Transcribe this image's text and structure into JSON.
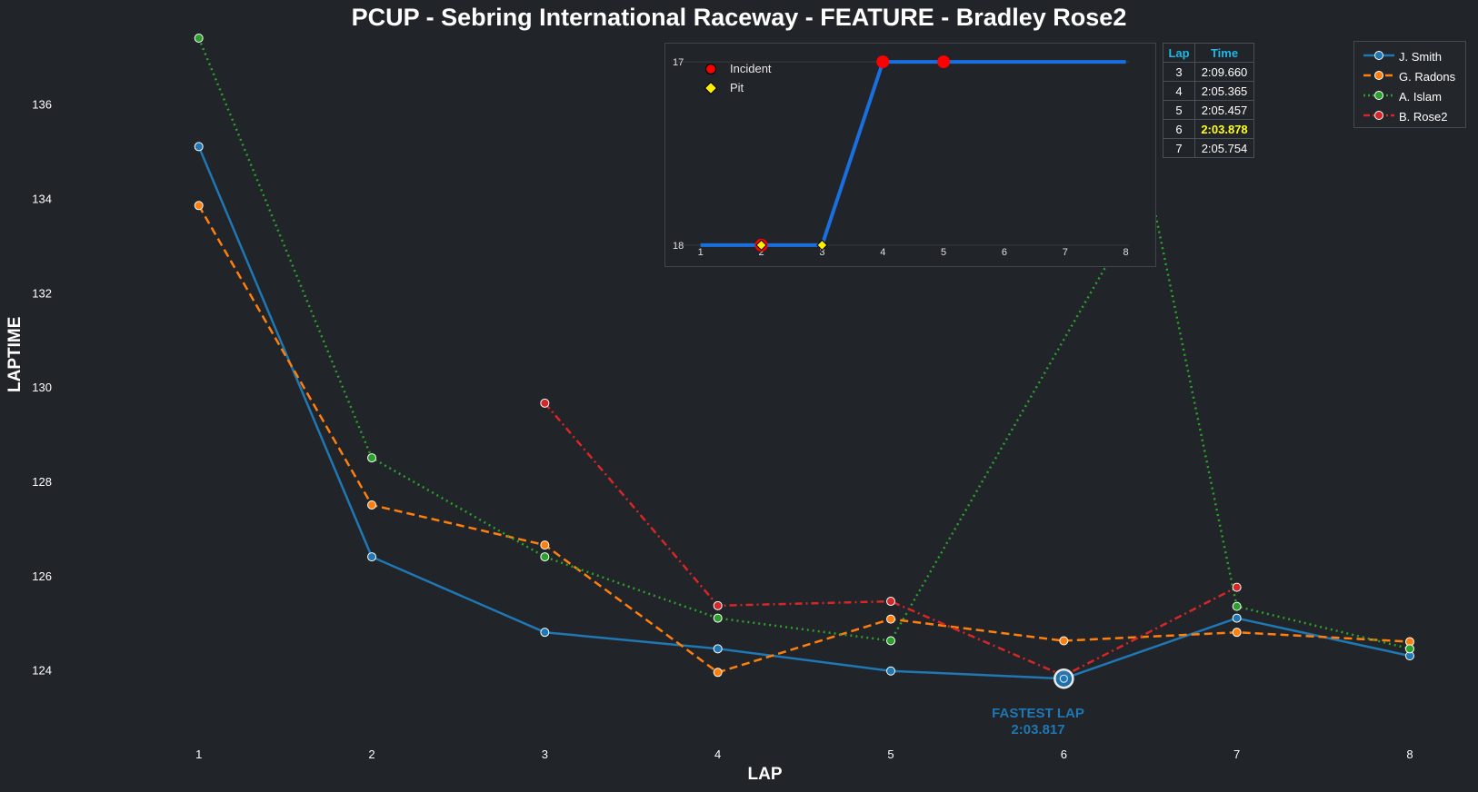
{
  "title": "PCUP - Sebring International Raceway - FEATURE - Bradley Rose2",
  "colors": {
    "background": "#212428",
    "j_smith": "#1f77b4",
    "g_radons": "#ff7f0e",
    "a_islam": "#2ca02c",
    "b_rose2": "#d62728",
    "position_line": "#1a6fdf",
    "incident": "#ff0000",
    "pit": "#ffee00",
    "table_header": "#1fb8e6",
    "fastest_highlight": "#ffff22"
  },
  "chart_data": [
    {
      "type": "line",
      "title": "PCUP - Sebring International Raceway - FEATURE - Bradley Rose2",
      "xlabel": "LAP",
      "ylabel": "LAPTIME",
      "x": [
        1,
        2,
        3,
        4,
        5,
        6,
        7,
        8
      ],
      "xlim": [
        0.35,
        8.1
      ],
      "ylim": [
        122.8,
        137.4
      ],
      "yticks": [
        124,
        126,
        128,
        130,
        132,
        134,
        136
      ],
      "grid": false,
      "legend_position": "top-right",
      "series": [
        {
          "name": "J. Smith",
          "style": "solid",
          "color": "#1f77b4",
          "points": [
            [
              1,
              135.1
            ],
            [
              2,
              126.4
            ],
            [
              3,
              124.8
            ],
            [
              4,
              124.45
            ],
            [
              5,
              123.98
            ],
            [
              6,
              123.817
            ],
            [
              7,
              125.1
            ],
            [
              8,
              124.3
            ]
          ]
        },
        {
          "name": "G. Radons",
          "style": "dashed",
          "color": "#ff7f0e",
          "points": [
            [
              1,
              133.85
            ],
            [
              2,
              127.5
            ],
            [
              3,
              126.65
            ],
            [
              4,
              123.95
            ],
            [
              5,
              125.08
            ],
            [
              6,
              124.62
            ],
            [
              7,
              124.8
            ],
            [
              8,
              124.6
            ]
          ]
        },
        {
          "name": "A. Islam",
          "style": "dotted",
          "color": "#2ca02c",
          "points": [
            [
              1,
              137.4
            ],
            [
              2,
              128.5
            ],
            [
              3,
              126.4
            ],
            [
              4,
              125.1
            ],
            [
              5,
              124.62
            ],
            [
              6.5,
              134.2
            ],
            [
              7,
              125.35
            ],
            [
              8,
              124.45
            ]
          ]
        },
        {
          "name": "B. Rose2",
          "style": "dashdot",
          "color": "#d62728",
          "points": [
            [
              3,
              129.66
            ],
            [
              4,
              125.365
            ],
            [
              5,
              125.457
            ],
            [
              6,
              123.878
            ],
            [
              7,
              125.754
            ]
          ]
        }
      ],
      "annotations": [
        {
          "text": "FASTEST LAP",
          "value_text": "2:03.817",
          "x": 6,
          "y": 123.817
        }
      ]
    },
    {
      "type": "line",
      "title": "",
      "xlabel": "",
      "ylabel": "",
      "x": [
        1,
        2,
        3,
        4,
        5,
        6,
        7,
        8
      ],
      "xlim": [
        0.6,
        8.35
      ],
      "ylim": [
        18.05,
        16.95
      ],
      "yticks": [
        17,
        18
      ],
      "y_inverted": true,
      "grid": "horizontal",
      "series": [
        {
          "name": "Position",
          "values": [
            18,
            18,
            18,
            17,
            17,
            17,
            17,
            17
          ]
        }
      ],
      "markers": [
        {
          "name": "Incident",
          "laps": [
            2,
            4,
            5
          ]
        },
        {
          "name": "Pit",
          "laps": [
            2,
            3
          ]
        }
      ]
    }
  ],
  "legend": {
    "items": [
      "J. Smith",
      "G. Radons",
      "A. Islam",
      "B. Rose2"
    ]
  },
  "inset": {
    "legend": [
      "Incident",
      "Pit"
    ]
  },
  "lap_table": {
    "headers": [
      "Lap",
      "Time"
    ],
    "rows": [
      {
        "lap": "3",
        "time": "2:09.660"
      },
      {
        "lap": "4",
        "time": "2:05.365"
      },
      {
        "lap": "5",
        "time": "2:05.457"
      },
      {
        "lap": "6",
        "time": "2:03.878"
      },
      {
        "lap": "7",
        "time": "2:05.754"
      }
    ],
    "fastest_row": 3
  },
  "fastest_lap": {
    "label": "FASTEST LAP",
    "time": "2:03.817"
  }
}
